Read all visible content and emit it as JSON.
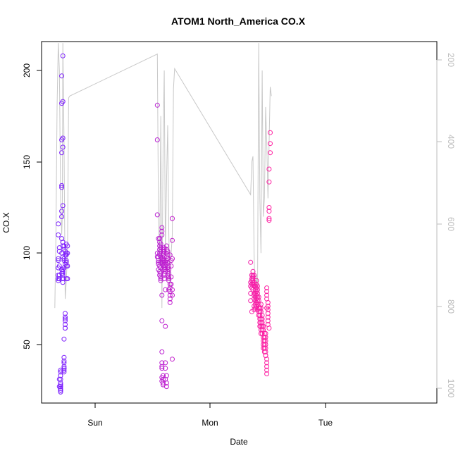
{
  "chart_data": {
    "type": "scatter",
    "title": "ATOM1 North_America CO.X",
    "xlabel": "Date",
    "ylabel": "CO.X",
    "x_ticks": [
      "Sun",
      "Mon",
      "Tue"
    ],
    "y_ticks": [
      "50",
      "100",
      "150",
      "200"
    ],
    "y2_ticks": [
      "200",
      "400",
      "600",
      "800",
      "1000"
    ],
    "ylim": [
      17,
      215
    ],
    "y2lim": [
      1020,
      80
    ],
    "y2_reversed": true,
    "grid": false,
    "colors": {
      "start": "#7a1fff",
      "end": "#ff1fa0",
      "line": "#c8c8c8",
      "right_axis": "#bdbdbd"
    },
    "points_x": [
      -0.32,
      -0.32,
      -0.32,
      -0.32,
      -0.32,
      -0.32,
      -0.32,
      -0.32,
      -0.31,
      -0.31,
      -0.31,
      -0.31,
      -0.31,
      -0.31,
      -0.31,
      -0.3,
      -0.3,
      -0.3,
      -0.3,
      -0.3,
      -0.3,
      -0.3,
      -0.3,
      -0.3,
      -0.3,
      -0.3,
      -0.3,
      -0.29,
      -0.29,
      -0.29,
      -0.29,
      -0.29,
      -0.29,
      -0.29,
      -0.29,
      -0.29,
      -0.29,
      -0.29,
      -0.29,
      -0.28,
      -0.28,
      -0.28,
      -0.28,
      -0.28,
      -0.28,
      -0.28,
      -0.28,
      -0.28,
      -0.28,
      -0.28,
      -0.28,
      -0.28,
      -0.28,
      -0.28,
      -0.27,
      -0.27,
      -0.27,
      -0.27,
      -0.27,
      -0.27,
      -0.27,
      -0.27,
      -0.27,
      -0.27,
      -0.27,
      -0.27,
      -0.27,
      -0.27,
      -0.26,
      -0.26,
      -0.26,
      -0.26,
      -0.26,
      -0.26,
      -0.26,
      -0.26,
      -0.26,
      -0.26,
      -0.25,
      -0.25,
      -0.25,
      -0.25,
      -0.25,
      -0.25,
      -0.25,
      -0.24,
      -0.24,
      -0.24,
      -0.24,
      0.54,
      0.54,
      0.54,
      0.54,
      0.54,
      0.55,
      0.55,
      0.55,
      0.55,
      0.55,
      0.55,
      0.56,
      0.56,
      0.56,
      0.56,
      0.56,
      0.56,
      0.56,
      0.56,
      0.56,
      0.57,
      0.57,
      0.57,
      0.57,
      0.57,
      0.57,
      0.57,
      0.57,
      0.57,
      0.57,
      0.58,
      0.58,
      0.58,
      0.58,
      0.58,
      0.58,
      0.58,
      0.58,
      0.58,
      0.58,
      0.58,
      0.58,
      0.58,
      0.59,
      0.59,
      0.59,
      0.59,
      0.59,
      0.59,
      0.59,
      0.59,
      0.59,
      0.59,
      0.59,
      0.59,
      0.6,
      0.6,
      0.6,
      0.6,
      0.6,
      0.6,
      0.6,
      0.6,
      0.6,
      0.6,
      0.61,
      0.61,
      0.61,
      0.61,
      0.61,
      0.61,
      0.61,
      0.61,
      0.61,
      0.62,
      0.62,
      0.62,
      0.62,
      0.62,
      0.62,
      0.62,
      0.62,
      0.62,
      0.63,
      0.63,
      0.63,
      0.63,
      0.63,
      0.63,
      0.63,
      0.64,
      0.64,
      0.64,
      0.64,
      0.64,
      0.64,
      0.64,
      0.65,
      0.65,
      0.65,
      0.65,
      0.65,
      0.65,
      0.65,
      0.66,
      0.66,
      0.66,
      0.66,
      0.67,
      0.67,
      0.67,
      0.67,
      0.67,
      0.67,
      1.35,
      1.35,
      1.35,
      1.35,
      1.35,
      1.36,
      1.36,
      1.36,
      1.36,
      1.36,
      1.36,
      1.36,
      1.37,
      1.37,
      1.37,
      1.37,
      1.37,
      1.37,
      1.37,
      1.37,
      1.38,
      1.38,
      1.38,
      1.38,
      1.38,
      1.38,
      1.38,
      1.38,
      1.39,
      1.39,
      1.39,
      1.39,
      1.39,
      1.39,
      1.39,
      1.39,
      1.39,
      1.4,
      1.4,
      1.4,
      1.4,
      1.4,
      1.4,
      1.4,
      1.4,
      1.41,
      1.41,
      1.41,
      1.41,
      1.41,
      1.41,
      1.41,
      1.42,
      1.42,
      1.42,
      1.42,
      1.42,
      1.42,
      1.42,
      1.43,
      1.43,
      1.43,
      1.43,
      1.43,
      1.43,
      1.43,
      1.43,
      1.44,
      1.44,
      1.44,
      1.44,
      1.44,
      1.44,
      1.44,
      1.44,
      1.45,
      1.45,
      1.45,
      1.45,
      1.45,
      1.45,
      1.46,
      1.46,
      1.46,
      1.46,
      1.46,
      1.46,
      1.47,
      1.47,
      1.47,
      1.47,
      1.47,
      1.47,
      1.48,
      1.48,
      1.48,
      1.48,
      1.48,
      1.48,
      1.48,
      1.48,
      1.49,
      1.49,
      1.49,
      1.49,
      1.49,
      1.49,
      1.49,
      1.49,
      1.49,
      1.49,
      1.5,
      1.5,
      1.5,
      1.5,
      1.5,
      1.5,
      1.5,
      1.51,
      1.51,
      1.51,
      1.51,
      1.51,
      1.51,
      1.51,
      1.52,
      1.52,
      1.52
    ],
    "points_y": [
      85,
      86,
      88,
      96,
      110,
      116,
      92,
      97,
      101,
      103,
      93,
      88,
      86,
      27,
      31,
      26,
      25,
      24,
      25,
      27,
      33,
      36,
      35,
      31,
      29,
      25,
      28,
      197,
      182,
      162,
      155,
      137,
      136,
      123,
      120,
      108,
      100,
      91,
      89,
      86,
      84,
      106,
      104,
      183,
      208,
      163,
      158,
      126,
      106,
      91,
      98,
      88,
      89,
      90,
      92,
      102,
      97,
      104,
      96,
      38,
      37,
      36,
      40,
      35,
      37,
      41,
      43,
      53,
      61,
      59,
      63,
      65,
      64,
      67,
      59,
      94,
      99,
      101,
      105,
      95,
      100,
      96,
      86,
      93,
      99,
      100,
      104,
      86,
      93,
      98,
      100,
      162,
      181,
      121,
      108,
      98,
      96,
      95,
      94,
      91,
      88,
      100,
      102,
      104,
      106,
      108,
      99,
      93,
      90,
      89,
      87,
      85,
      86,
      92,
      95,
      98,
      101,
      103,
      105,
      110,
      112,
      114,
      97,
      94,
      77,
      63,
      46,
      40,
      38,
      37,
      32,
      30,
      28,
      29,
      31,
      33,
      96,
      100,
      102,
      101,
      99,
      97,
      95,
      93,
      91,
      89,
      88,
      86,
      103,
      101,
      98,
      96,
      94,
      92,
      90,
      95,
      93,
      91,
      80,
      60,
      40,
      37,
      31,
      29,
      27,
      33,
      104,
      102,
      100,
      98,
      96,
      94,
      92,
      90,
      88,
      101,
      99,
      97,
      95,
      93,
      91,
      89,
      87,
      85,
      80,
      86,
      83,
      81,
      79,
      77,
      75,
      73,
      99,
      96,
      93,
      87,
      83,
      80,
      77,
      42,
      119,
      107,
      97,
      95,
      84,
      82,
      78,
      74,
      68,
      88,
      86,
      83,
      85,
      81,
      88,
      90,
      88,
      87,
      86,
      85,
      84,
      83,
      80,
      77,
      75,
      71,
      69,
      78,
      82,
      88,
      84,
      82,
      80,
      78,
      76,
      74,
      72,
      70,
      80,
      82,
      85,
      83,
      81,
      79,
      77,
      75,
      73,
      71,
      69,
      82,
      80,
      78,
      76,
      74,
      72,
      70,
      68,
      66,
      76,
      74,
      72,
      70,
      68,
      66,
      64,
      62,
      60,
      70,
      68,
      66,
      64,
      62,
      60,
      58,
      56,
      72,
      70,
      68,
      66,
      64,
      62,
      60,
      58,
      56,
      54,
      52,
      50,
      48,
      60,
      58,
      56,
      54,
      52,
      50,
      48,
      46,
      44,
      56,
      54,
      52,
      50,
      48,
      46,
      44,
      42,
      40,
      38,
      36,
      34,
      70,
      81,
      79,
      77,
      75,
      73,
      71,
      69,
      67,
      65,
      63,
      61,
      59,
      119,
      118,
      125,
      123,
      139,
      146,
      155,
      160,
      166,
      173,
      174
    ],
    "line_x": [
      -0.35,
      -0.34,
      -0.33,
      -0.32,
      -0.31,
      -0.3,
      -0.29,
      -0.285,
      -0.28,
      -0.27,
      -0.26,
      -0.25,
      -0.24,
      -0.23,
      -0.22,
      0.54,
      0.55,
      0.56,
      0.57,
      0.58,
      0.59,
      0.6,
      0.61,
      0.62,
      0.63,
      0.64,
      0.65,
      0.66,
      0.67,
      0.68,
      0.69,
      1.35,
      1.36,
      1.37,
      1.38,
      1.39,
      1.4,
      1.41,
      1.42,
      1.43,
      1.44,
      1.45,
      1.46,
      1.47,
      1.48,
      1.49,
      1.5,
      1.51,
      1.52,
      1.53
    ],
    "line_y": [
      70,
      110,
      180,
      215,
      200,
      130,
      110,
      120,
      215,
      160,
      75,
      85,
      100,
      185,
      186,
      209,
      120,
      95,
      175,
      70,
      160,
      200,
      100,
      140,
      170,
      110,
      80,
      100,
      110,
      190,
      201,
      132,
      150,
      153,
      100,
      73,
      88,
      80,
      215,
      130,
      100,
      200,
      120,
      130,
      180,
      160,
      130,
      160,
      191,
      186
    ]
  }
}
